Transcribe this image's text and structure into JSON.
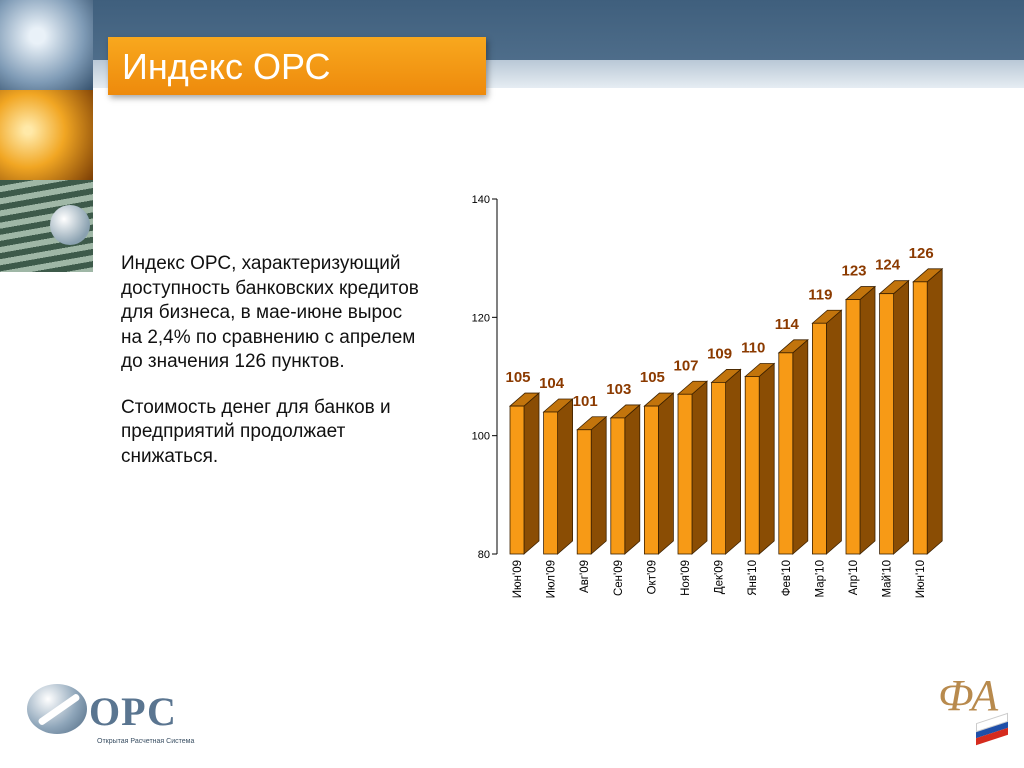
{
  "title": "Индекс ОРС",
  "description": [
    "Индекс ОРС, характеризующий доступность банковских кредитов для бизнеса, в мае-июне вырос на 2,4% по сравнению с апрелем до значения 126 пунктов.",
    "Стоимость денег для банков и предприятий продолжает снижаться."
  ],
  "logo": {
    "left_name": "ОРС",
    "left_tagline": "Открытая Расчетная Система",
    "right_icon": "fa-monogram-logo"
  },
  "colors": {
    "title_bg": "#f59c14",
    "bar_front": "#f79a16",
    "bar_side": "#8a4d04",
    "bar_top": "#c2740c",
    "value_label": "#8b3a00",
    "header_band": "#4a6886"
  },
  "chart_data": {
    "type": "bar",
    "title": "",
    "xlabel": "",
    "ylabel": "",
    "ylim": [
      80,
      140
    ],
    "yticks": [
      80,
      100,
      120,
      140
    ],
    "grid": false,
    "style": "3d-bars",
    "categories": [
      "Июн'09",
      "Июл'09",
      "Авг'09",
      "Сен'09",
      "Окт'09",
      "Ноя'09",
      "Дек'09",
      "Янв'10",
      "Фев'10",
      "Мар'10",
      "Апр'10",
      "Май'10",
      "Июн'10"
    ],
    "values": [
      105,
      104,
      101,
      103,
      105,
      107,
      109,
      110,
      114,
      119,
      123,
      124,
      126
    ]
  }
}
